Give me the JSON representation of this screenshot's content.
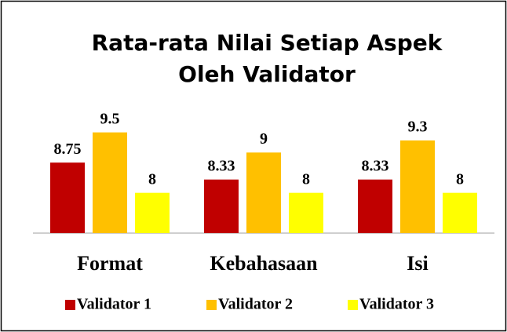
{
  "chart_data": {
    "type": "bar",
    "title": [
      "Rata-rata Nilai Setiap Aspek",
      "Oleh Validator"
    ],
    "categories": [
      "Format",
      "Kebahasaan",
      "Isi"
    ],
    "series": [
      {
        "name": "Validator 1",
        "color": "#c00000",
        "values": [
          8.75,
          8.33,
          8.33
        ]
      },
      {
        "name": "Validator 2",
        "color": "#ffc000",
        "values": [
          9.5,
          9,
          9.3
        ]
      },
      {
        "name": "Validator 3",
        "color": "#ffff00",
        "values": [
          8,
          8,
          8
        ]
      }
    ],
    "ylim": [
      7,
      10
    ],
    "legend": "bottom"
  }
}
